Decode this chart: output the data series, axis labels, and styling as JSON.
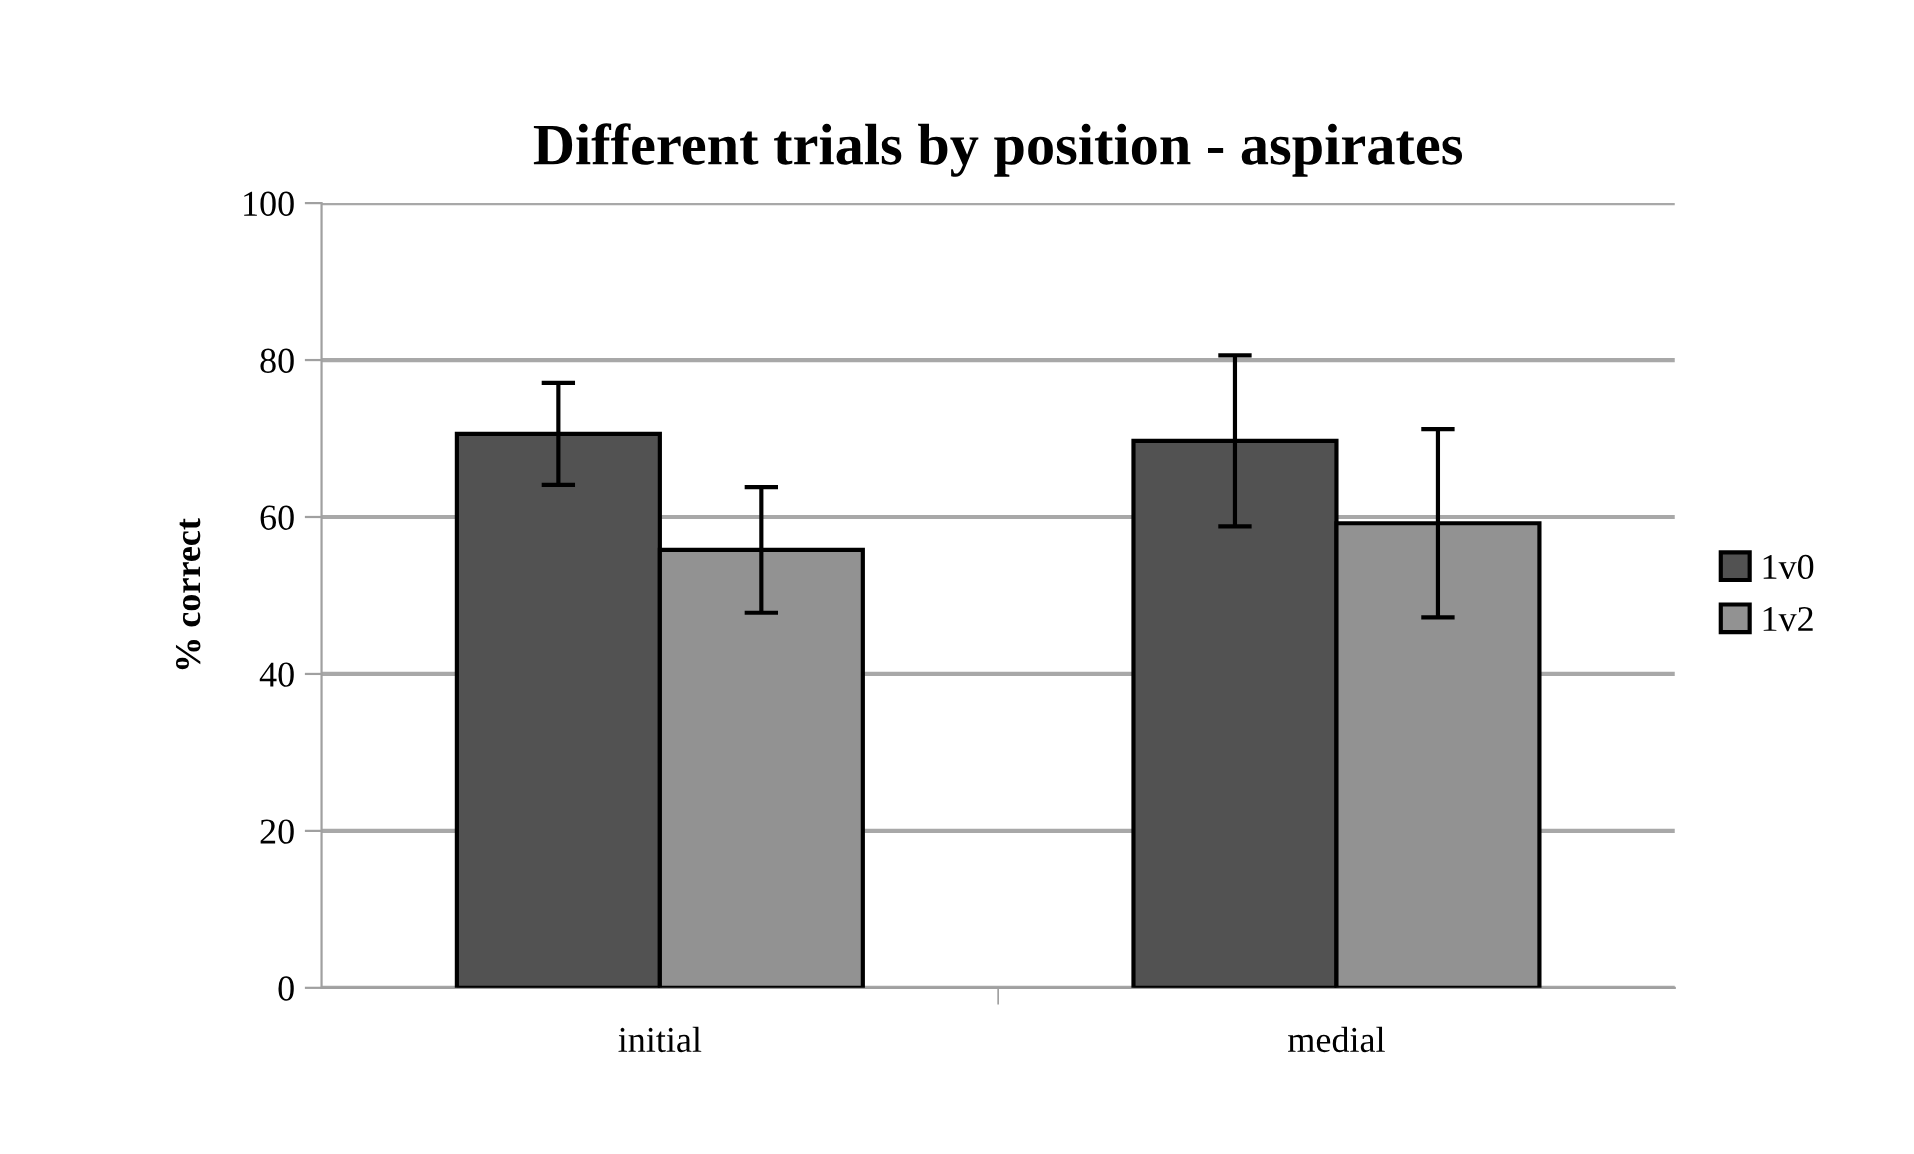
{
  "chart_data": {
    "type": "bar",
    "title": "Different trials by position - aspirates",
    "ylabel": "% correct",
    "categories": [
      "initial",
      "medial"
    ],
    "series": [
      {
        "name": "1v0",
        "color": "#525252",
        "values": [
          70.6,
          69.7
        ],
        "errors": [
          6.5,
          10.9
        ]
      },
      {
        "name": "1v2",
        "color": "#929292",
        "values": [
          55.8,
          59.2
        ],
        "errors": [
          8.0,
          12.0
        ]
      }
    ],
    "ylim": [
      0,
      100
    ],
    "yticks": [
      0,
      20,
      40,
      60,
      80,
      100
    ],
    "grid": "y",
    "legend": "right"
  }
}
